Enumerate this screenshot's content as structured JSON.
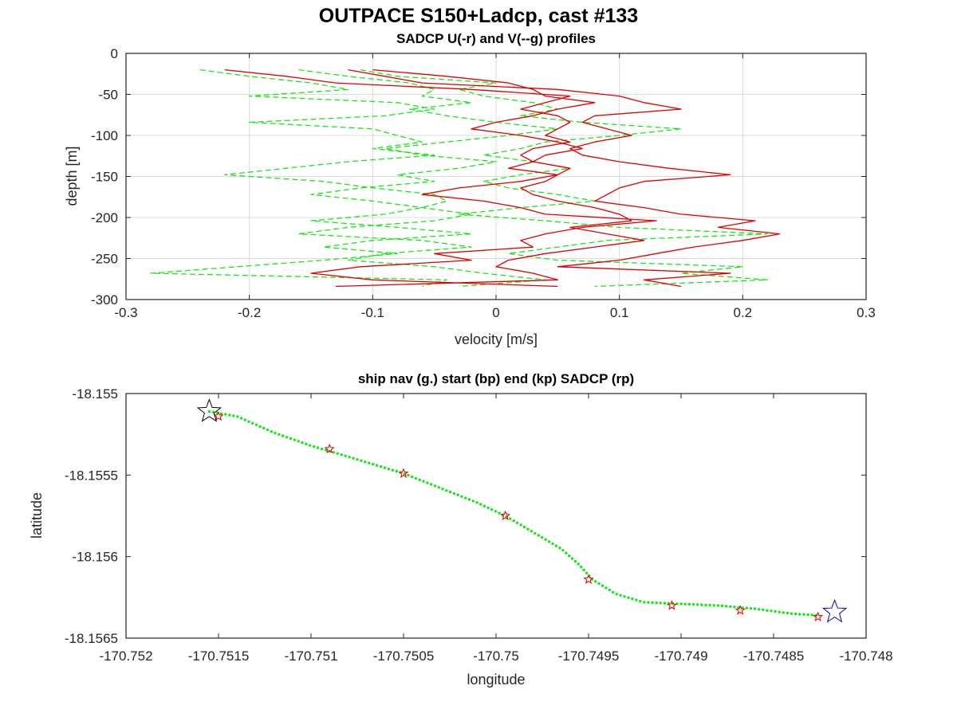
{
  "figure": {
    "suptitle": "OUTPACE S150+Ladcp, cast #133"
  },
  "chart_data": [
    {
      "type": "line",
      "title": "SADCP U(-r) and V(--g) profiles",
      "xlabel": "velocity [m/s]",
      "ylabel": "depth [m]",
      "xlim": [
        -0.3,
        0.3
      ],
      "ylim": [
        -300,
        0
      ],
      "xticks": [
        -0.3,
        -0.2,
        -0.1,
        0,
        0.1,
        0.2,
        0.3
      ],
      "xtick_labels": [
        "-0.3",
        "-0.2",
        "-0.1",
        "0",
        "0.1",
        "0.2",
        "0.3"
      ],
      "yticks": [
        0,
        -50,
        -100,
        -150,
        -200,
        -250,
        -300
      ],
      "ytick_labels": [
        "0",
        "-50",
        "-100",
        "-150",
        "-200",
        "-250",
        "-300"
      ],
      "grid": true,
      "depth": [
        -20,
        -28,
        -36,
        -44,
        -52,
        -60,
        -68,
        -76,
        -84,
        -92,
        -100,
        -108,
        -116,
        -124,
        -132,
        -140,
        -148,
        -156,
        -164,
        -172,
        -180,
        -188,
        -196,
        -204,
        -212,
        -220,
        -228,
        -236,
        -244,
        -252,
        -260,
        -268,
        -276,
        -284
      ],
      "series": [
        {
          "name": "U",
          "style": "solid",
          "color": "#e00000",
          "profiles": [
            [
              -0.22,
              -0.17,
              -0.13,
              -0.02,
              0.06,
              0.04,
              0.02,
              0.05,
              0.06,
              0.05,
              0.04,
              0.06,
              0.03,
              0.02,
              0.03,
              0.01,
              0.05,
              0.02,
              -0.03,
              -0.06,
              -0.01,
              0.02,
              0.04,
              0.13,
              0.07,
              0.04,
              0.02,
              0.03,
              -0.05,
              -0.02,
              -0.11,
              -0.15,
              -0.1,
              0.05
            ],
            [
              -0.12,
              -0.09,
              -0.06,
              0.05,
              0.1,
              0.12,
              0.15,
              0.08,
              0.07,
              0.09,
              0.11,
              0.08,
              0.06,
              0.07,
              0.1,
              0.14,
              0.19,
              0.12,
              0.1,
              0.09,
              0.08,
              0.12,
              0.15,
              0.21,
              0.18,
              0.23,
              0.2,
              0.16,
              0.13,
              0.1,
              0.05,
              0.19,
              0.12,
              0.15
            ],
            [
              -0.1,
              -0.04,
              0.01,
              0.03,
              0.04,
              0.08,
              0.05,
              0.03,
              0.0,
              -0.02,
              0.02,
              0.05,
              0.07,
              0.04,
              0.03,
              0.06,
              0.05,
              0.04,
              0.02,
              0.03,
              0.05,
              0.08,
              0.1,
              0.11,
              0.06,
              0.09,
              0.12,
              0.08,
              0.04,
              0.01,
              0.0,
              0.03,
              0.05,
              -0.13
            ]
          ]
        },
        {
          "name": "V",
          "style": "dashed",
          "color": "#19e619",
          "profiles": [
            [
              -0.24,
              -0.2,
              -0.15,
              -0.12,
              -0.2,
              -0.08,
              -0.05,
              -0.09,
              -0.2,
              -0.1,
              -0.08,
              -0.06,
              -0.1,
              -0.05,
              -0.12,
              -0.17,
              -0.22,
              -0.14,
              -0.1,
              -0.05,
              -0.04,
              -0.06,
              -0.09,
              -0.15,
              -0.08,
              -0.02,
              -0.1,
              -0.14,
              -0.08,
              -0.14,
              -0.21,
              -0.28,
              -0.04,
              -0.06
            ],
            [
              -0.11,
              -0.08,
              0.0,
              -0.03,
              -0.01,
              0.03,
              0.05,
              0.02,
              0.07,
              0.15,
              0.1,
              0.04,
              0.02,
              -0.01,
              0.03,
              0.06,
              0.02,
              -0.01,
              0.01,
              0.05,
              0.08,
              0.02,
              -0.03,
              0.04,
              0.1,
              0.22,
              0.09,
              0.05,
              0.01,
              0.05,
              0.2,
              0.15,
              0.22,
              0.08
            ],
            [
              -0.16,
              -0.12,
              -0.07,
              -0.05,
              -0.06,
              -0.02,
              -0.07,
              -0.04,
              0.0,
              0.05,
              0.01,
              -0.04,
              -0.09,
              -0.06,
              0.0,
              -0.03,
              -0.08,
              -0.05,
              -0.11,
              -0.15,
              -0.1,
              -0.06,
              -0.02,
              -0.05,
              -0.12,
              -0.16,
              -0.06,
              -0.02,
              -0.09,
              -0.12,
              -0.05,
              -0.01,
              0.04,
              -0.03
            ]
          ]
        }
      ]
    },
    {
      "type": "scatter",
      "title": "ship nav (g.) start (bp) end (kp) SADCP (rp)",
      "xlabel": "longitude",
      "ylabel": "latitude",
      "xlim": [
        -170.752,
        -170.748
      ],
      "ylim": [
        -18.1565,
        -18.155
      ],
      "xticks": [
        -170.752,
        -170.7515,
        -170.751,
        -170.7505,
        -170.75,
        -170.7495,
        -170.749,
        -170.7485,
        -170.748
      ],
      "xtick_labels": [
        "-170.752",
        "-170.7515",
        "-170.751",
        "-170.7505",
        "-170.75",
        "-170.7495",
        "-170.749",
        "-170.7485",
        "-170.748"
      ],
      "yticks": [
        -18.155,
        -18.1555,
        -18.156,
        -18.1565
      ],
      "ytick_labels": [
        "-18.155",
        "-18.1555",
        "-18.156",
        "-18.1565"
      ],
      "grid": false,
      "series": [
        {
          "name": "ship nav",
          "marker": "dot",
          "color": "#19e619",
          "track": [
            [
              -170.75155,
              -18.15511
            ],
            [
              -170.7514,
              -18.15514
            ],
            [
              -170.7512,
              -18.15524
            ],
            [
              -170.751,
              -18.15532
            ],
            [
              -170.75085,
              -18.15537
            ],
            [
              -170.7505,
              -18.15549
            ],
            [
              -170.7503,
              -18.15558
            ],
            [
              -170.7501,
              -18.15567
            ],
            [
              -170.74995,
              -18.15575
            ],
            [
              -170.7498,
              -18.15585
            ],
            [
              -170.74965,
              -18.15595
            ],
            [
              -170.74955,
              -18.15605
            ],
            [
              -170.74948,
              -18.15614
            ],
            [
              -170.74935,
              -18.15623
            ],
            [
              -170.7492,
              -18.15628
            ],
            [
              -170.749,
              -18.15629
            ],
            [
              -170.7488,
              -18.1563
            ],
            [
              -170.7486,
              -18.15632
            ],
            [
              -170.7484,
              -18.15635
            ],
            [
              -170.74827,
              -18.15636
            ]
          ],
          "count": 160
        },
        {
          "name": "start",
          "marker": "star",
          "color": "#000000",
          "points": [
            [
              -170.75155,
              -18.15511
            ]
          ]
        },
        {
          "name": "end",
          "marker": "star",
          "color": "#0000c8",
          "points": [
            [
              -170.74817,
              -18.15634
            ]
          ]
        },
        {
          "name": "SADCP",
          "marker": "star",
          "color": "#e00000",
          "points": [
            [
              -170.7515,
              -18.15514
            ],
            [
              -170.7509,
              -18.15534
            ],
            [
              -170.7505,
              -18.15549
            ],
            [
              -170.74995,
              -18.15575
            ],
            [
              -170.7495,
              -18.15614
            ],
            [
              -170.74905,
              -18.1563
            ],
            [
              -170.74868,
              -18.15633
            ],
            [
              -170.74826,
              -18.15637
            ]
          ]
        }
      ]
    }
  ]
}
